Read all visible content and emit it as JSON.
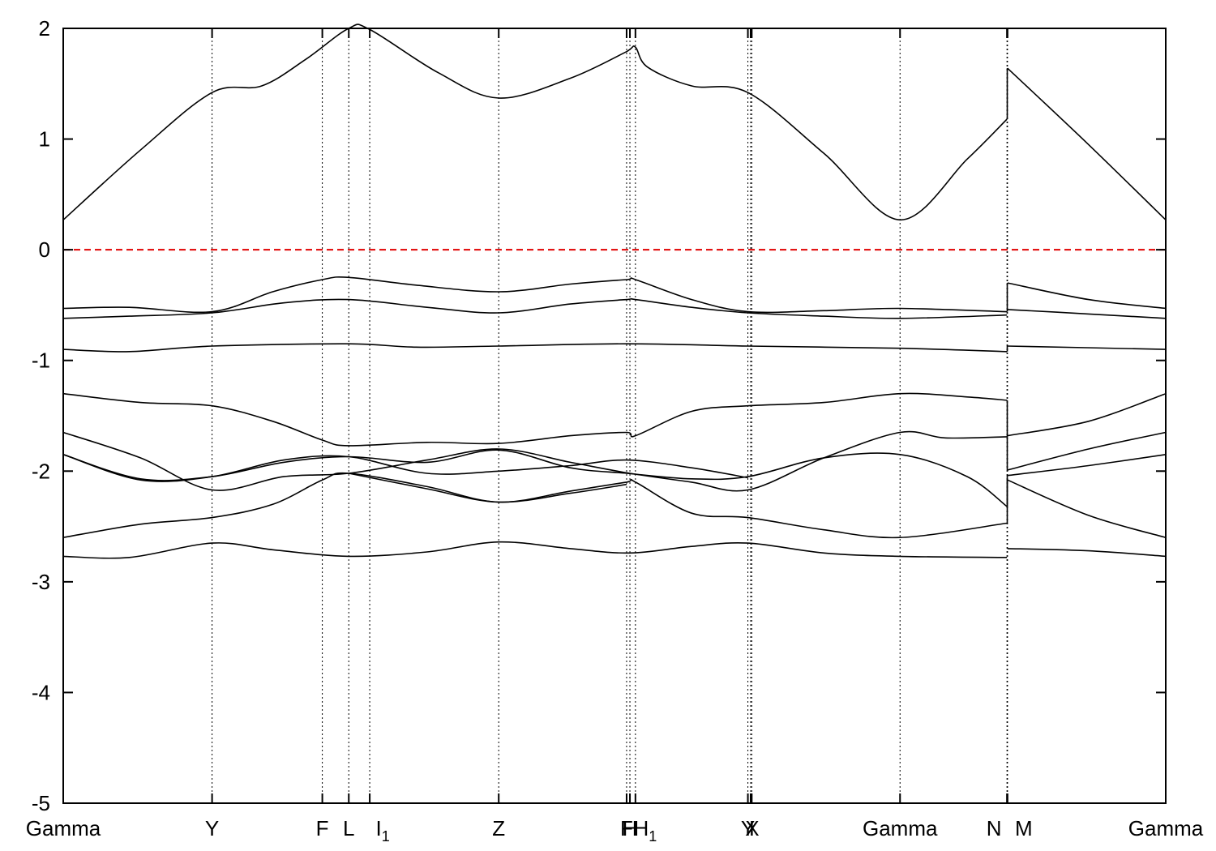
{
  "chart_data": {
    "type": "line",
    "title": "",
    "xlabel": "",
    "ylabel": "",
    "xlim": [
      0,
      10
    ],
    "ylim": [
      -5,
      2
    ],
    "grid": false,
    "y_ticks": [
      2,
      1,
      0,
      -1,
      -2,
      -3,
      -4,
      -5
    ],
    "y_tick_labels": [
      "2",
      "1",
      "0",
      "-1",
      "-2",
      "-3",
      "-4",
      "-5"
    ],
    "k_points": [
      {
        "x": 0.0,
        "label": "Gamma",
        "sub": ""
      },
      {
        "x": 1.35,
        "label": "Y",
        "sub": ""
      },
      {
        "x": 2.35,
        "label": "F",
        "sub": ""
      },
      {
        "x": 2.59,
        "label": "L",
        "sub": ""
      },
      {
        "x": 2.78,
        "label": "I",
        "sub": "1"
      },
      {
        "x": 3.95,
        "label": "Z",
        "sub": ""
      },
      {
        "x": 5.11,
        "label": "F",
        "sub": ""
      },
      {
        "x": 5.14,
        "label": "H",
        "sub": ""
      },
      {
        "x": 5.19,
        "label": "H",
        "sub": "1"
      },
      {
        "x": 6.21,
        "label": "Y",
        "sub": ""
      },
      {
        "x": 6.235,
        "label": "X",
        "sub": ""
      },
      {
        "x": 6.245,
        "label": "I",
        "sub": ""
      },
      {
        "x": 7.59,
        "label": "Gamma",
        "sub": ""
      },
      {
        "x": 8.56,
        "label": "N",
        "sub": ""
      },
      {
        "x": 8.565,
        "label": "M",
        "sub": ""
      },
      {
        "x": 10.0,
        "label": "Gamma",
        "sub": ""
      }
    ],
    "fermi_level": {
      "y": 0,
      "color": "#e00000",
      "style": "dashed"
    },
    "series": [
      {
        "points": [
          [
            0,
            0.27
          ],
          [
            0.7,
            0.9
          ],
          [
            1.35,
            1.42
          ],
          [
            1.8,
            1.48
          ],
          [
            2.2,
            1.72
          ],
          [
            2.59,
            2.0
          ],
          [
            2.78,
            1.99
          ],
          [
            3.4,
            1.6
          ],
          [
            3.95,
            1.37
          ],
          [
            4.6,
            1.55
          ],
          [
            5.11,
            1.79
          ],
          [
            5.19,
            1.83
          ],
          [
            5.3,
            1.65
          ],
          [
            5.7,
            1.48
          ],
          [
            6.21,
            1.42
          ],
          [
            6.9,
            0.87
          ],
          [
            7.59,
            0.27
          ],
          [
            8.2,
            0.82
          ],
          [
            8.56,
            1.18
          ]
        ]
      },
      {
        "points": [
          [
            8.565,
            1.64
          ],
          [
            9.3,
            0.95
          ],
          [
            10,
            0.27
          ]
        ]
      },
      {
        "points": [
          [
            0,
            -0.53
          ],
          [
            0.6,
            -0.52
          ],
          [
            1.35,
            -0.56
          ],
          [
            1.9,
            -0.38
          ],
          [
            2.35,
            -0.27
          ],
          [
            2.59,
            -0.25
          ],
          [
            3.2,
            -0.32
          ],
          [
            3.95,
            -0.38
          ],
          [
            4.6,
            -0.31
          ],
          [
            5.11,
            -0.27
          ],
          [
            5.19,
            -0.27
          ],
          [
            5.7,
            -0.45
          ],
          [
            6.21,
            -0.56
          ],
          [
            6.9,
            -0.55
          ],
          [
            7.59,
            -0.53
          ],
          [
            8.56,
            -0.56
          ]
        ]
      },
      {
        "points": [
          [
            8.565,
            -0.3
          ],
          [
            9.3,
            -0.45
          ],
          [
            10,
            -0.53
          ]
        ]
      },
      {
        "points": [
          [
            0,
            -0.62
          ],
          [
            0.6,
            -0.6
          ],
          [
            1.35,
            -0.57
          ],
          [
            2.0,
            -0.48
          ],
          [
            2.59,
            -0.45
          ],
          [
            3.3,
            -0.52
          ],
          [
            3.95,
            -0.57
          ],
          [
            4.6,
            -0.49
          ],
          [
            5.11,
            -0.45
          ],
          [
            5.19,
            -0.45
          ],
          [
            5.7,
            -0.52
          ],
          [
            6.21,
            -0.57
          ],
          [
            6.9,
            -0.6
          ],
          [
            7.59,
            -0.62
          ],
          [
            8.56,
            -0.59
          ]
        ]
      },
      {
        "points": [
          [
            8.565,
            -0.54
          ],
          [
            9.3,
            -0.58
          ],
          [
            10,
            -0.62
          ]
        ]
      },
      {
        "points": [
          [
            0,
            -0.9
          ],
          [
            0.6,
            -0.92
          ],
          [
            1.35,
            -0.87
          ],
          [
            2.59,
            -0.85
          ],
          [
            3.2,
            -0.88
          ],
          [
            3.95,
            -0.87
          ],
          [
            5.11,
            -0.85
          ],
          [
            6.21,
            -0.87
          ],
          [
            7.59,
            -0.89
          ],
          [
            8.56,
            -0.92
          ]
        ]
      },
      {
        "points": [
          [
            8.565,
            -0.87
          ],
          [
            10,
            -0.9
          ]
        ]
      },
      {
        "points": [
          [
            0,
            -1.3
          ],
          [
            0.7,
            -1.38
          ],
          [
            1.35,
            -1.41
          ],
          [
            1.9,
            -1.55
          ],
          [
            2.35,
            -1.72
          ],
          [
            2.59,
            -1.77
          ],
          [
            3.3,
            -1.74
          ],
          [
            3.95,
            -1.75
          ],
          [
            4.6,
            -1.68
          ],
          [
            5.11,
            -1.65
          ],
          [
            5.19,
            -1.68
          ],
          [
            5.7,
            -1.46
          ],
          [
            6.21,
            -1.41
          ],
          [
            6.9,
            -1.38
          ],
          [
            7.59,
            -1.3
          ],
          [
            8.2,
            -1.33
          ],
          [
            8.56,
            -1.36
          ]
        ]
      },
      {
        "points": [
          [
            8.565,
            -1.68
          ],
          [
            9.3,
            -1.55
          ],
          [
            10,
            -1.3
          ]
        ]
      },
      {
        "points": [
          [
            0,
            -1.65
          ],
          [
            0.7,
            -1.88
          ],
          [
            1.35,
            -2.17
          ],
          [
            2.0,
            -2.05
          ],
          [
            2.59,
            -2.02
          ],
          [
            3.3,
            -1.9
          ],
          [
            3.95,
            -1.8
          ],
          [
            4.6,
            -1.92
          ],
          [
            5.14,
            -2.02
          ],
          [
            5.7,
            -2.1
          ],
          [
            6.21,
            -2.17
          ],
          [
            6.9,
            -1.88
          ],
          [
            7.59,
            -1.65
          ],
          [
            8.0,
            -1.7
          ],
          [
            8.56,
            -1.69
          ]
        ]
      },
      {
        "points": [
          [
            8.565,
            -1.99
          ],
          [
            9.3,
            -1.8
          ],
          [
            10,
            -1.65
          ]
        ]
      },
      {
        "points": [
          [
            0,
            -1.85
          ],
          [
            0.7,
            -2.07
          ],
          [
            1.35,
            -2.05
          ],
          [
            2.0,
            -1.92
          ],
          [
            2.59,
            -1.87
          ],
          [
            3.3,
            -1.92
          ],
          [
            3.95,
            -1.81
          ],
          [
            4.6,
            -1.97
          ],
          [
            5.11,
            -2.02
          ],
          [
            5.7,
            -2.07
          ],
          [
            6.21,
            -2.05
          ],
          [
            6.9,
            -1.88
          ],
          [
            7.59,
            -1.85
          ],
          [
            8.2,
            -2.05
          ],
          [
            8.56,
            -2.32
          ]
        ]
      },
      {
        "points": [
          [
            8.565,
            -2.04
          ],
          [
            9.3,
            -1.95
          ],
          [
            10,
            -1.85
          ]
        ]
      },
      {
        "points": [
          [
            0,
            -1.85
          ],
          [
            0.7,
            -2.08
          ],
          [
            1.35,
            -2.05
          ],
          [
            2.0,
            -1.9
          ],
          [
            2.59,
            -1.87
          ],
          [
            3.3,
            -2.02
          ],
          [
            3.95,
            -2.0
          ],
          [
            4.6,
            -1.95
          ],
          [
            5.11,
            -1.9
          ],
          [
            5.7,
            -1.97
          ],
          [
            6.21,
            -2.06
          ]
        ]
      },
      {
        "points": [
          [
            0,
            -2.6
          ],
          [
            0.7,
            -2.48
          ],
          [
            1.35,
            -2.42
          ],
          [
            1.9,
            -2.3
          ],
          [
            2.35,
            -2.08
          ],
          [
            2.59,
            -2.02
          ],
          [
            3.3,
            -2.14
          ],
          [
            3.95,
            -2.28
          ],
          [
            4.6,
            -2.18
          ],
          [
            5.11,
            -2.1
          ],
          [
            5.19,
            -2.1
          ],
          [
            5.7,
            -2.38
          ],
          [
            6.21,
            -2.42
          ],
          [
            6.9,
            -2.53
          ],
          [
            7.59,
            -2.6
          ],
          [
            8.56,
            -2.47
          ]
        ]
      },
      {
        "points": [
          [
            8.565,
            -2.08
          ],
          [
            9.3,
            -2.4
          ],
          [
            10,
            -2.6
          ]
        ]
      },
      {
        "points": [
          [
            2.59,
            -2.02
          ],
          [
            3.3,
            -2.16
          ],
          [
            3.95,
            -2.28
          ],
          [
            4.6,
            -2.2
          ],
          [
            5.11,
            -2.12
          ]
        ]
      },
      {
        "points": [
          [
            0,
            -2.77
          ],
          [
            0.6,
            -2.78
          ],
          [
            1.35,
            -2.65
          ],
          [
            1.9,
            -2.71
          ],
          [
            2.59,
            -2.77
          ],
          [
            3.3,
            -2.73
          ],
          [
            3.95,
            -2.64
          ],
          [
            4.6,
            -2.7
          ],
          [
            5.14,
            -2.74
          ],
          [
            5.7,
            -2.68
          ],
          [
            6.21,
            -2.65
          ],
          [
            6.9,
            -2.74
          ],
          [
            7.59,
            -2.77
          ],
          [
            8.56,
            -2.78
          ]
        ]
      },
      {
        "points": [
          [
            8.565,
            -2.7
          ],
          [
            9.3,
            -2.72
          ],
          [
            10,
            -2.77
          ]
        ]
      }
    ]
  }
}
